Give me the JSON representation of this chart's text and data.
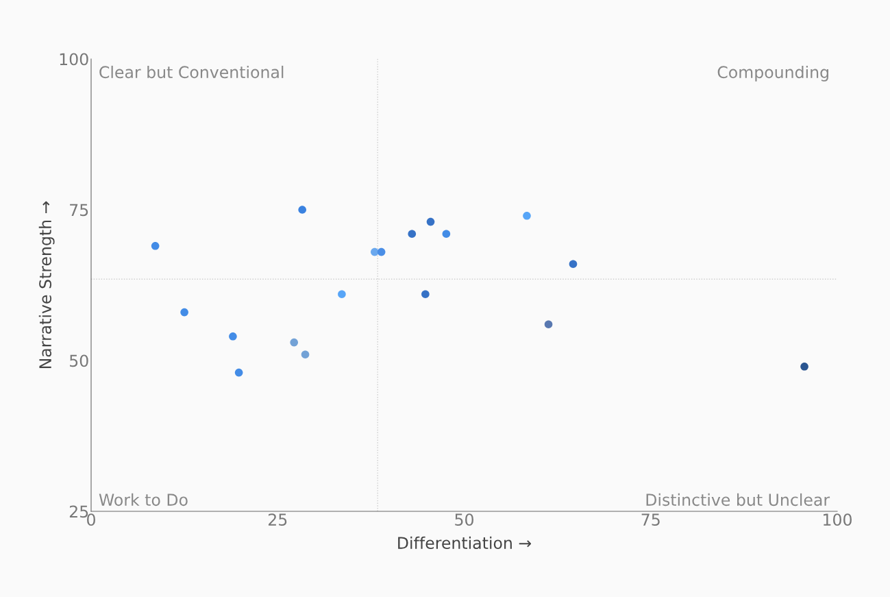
{
  "chart_data": {
    "type": "scatter",
    "xlabel": "Differentiation →",
    "ylabel": "Narrative Strength →",
    "xlim": [
      0,
      100
    ],
    "ylim": [
      25,
      100
    ],
    "xticks": [
      0,
      25,
      50,
      75,
      100
    ],
    "yticks": [
      25,
      50,
      75,
      100
    ],
    "grid": false,
    "marker": "circle",
    "series": [
      {
        "x": [
          8.6,
          12.5,
          19.0,
          19.8,
          27.2,
          28.3,
          28.7,
          33.6,
          38.0,
          38.9,
          43.0,
          44.8,
          45.5,
          47.6,
          58.4,
          61.3,
          64.6,
          95.6
        ],
        "values": [
          69,
          58,
          54,
          48,
          53,
          75,
          51,
          61,
          68,
          68,
          71,
          61,
          73,
          71,
          74,
          56,
          66,
          49
        ],
        "colors": [
          "#438ce6",
          "#438ce6",
          "#438ce6",
          "#438ce6",
          "#73a2d6",
          "#3a82e0",
          "#73a2d6",
          "#57a5f7",
          "#6aa8ee",
          "#4a8ee6",
          "#3672c6",
          "#3672c6",
          "#3672c6",
          "#438ce6",
          "#57a5f7",
          "#5878b0",
          "#3672c6",
          "#2a5590"
        ]
      }
    ],
    "ref_lines": [
      {
        "axis": "x",
        "value": 38.4,
        "color": "#cccccc",
        "line_style": "dotted"
      },
      {
        "axis": "y",
        "value": 63.5,
        "color": "#cccccc",
        "line_style": "dotted"
      }
    ],
    "annotations": [
      "Clear but Conventional",
      "Compounding",
      "Work to Do",
      "Distinctive but Unclear"
    ]
  }
}
